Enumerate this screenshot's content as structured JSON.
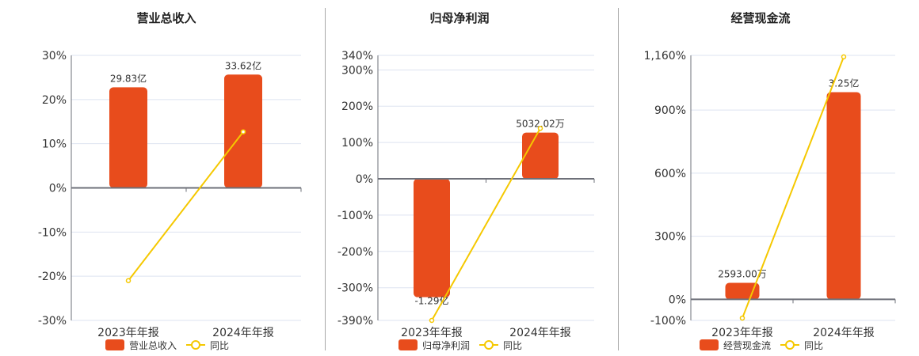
{
  "colors": {
    "bar": "#e84c1c",
    "line": "#f5c800",
    "grid": "#dde3f0",
    "axis": "#6e7079",
    "text": "#333333"
  },
  "chart_data": [
    {
      "type": "bar+line",
      "title": "营业总收入",
      "categories": [
        "2023年年报",
        "2024年年报"
      ],
      "series": [
        {
          "name": "营业总收入",
          "type": "bar",
          "values": [
            29.83,
            33.62
          ],
          "unit": "亿",
          "labels": [
            "29.83亿",
            "33.62亿"
          ]
        },
        {
          "name": "同比",
          "type": "line",
          "values": [
            -21.0,
            12.7
          ],
          "unit": "%"
        }
      ],
      "yticks": [
        "30%",
        "20%",
        "10%",
        "0%",
        "-10%",
        "-20%",
        "-30%"
      ],
      "ytick_values": [
        30,
        20,
        10,
        0,
        -10,
        -20,
        -30
      ],
      "ylim": [
        -30,
        30
      ],
      "grid": true,
      "legend": "bottom"
    },
    {
      "type": "bar+line",
      "title": "归母净利润",
      "categories": [
        "2023年年报",
        "2024年年报"
      ],
      "series": [
        {
          "name": "归母净利润",
          "type": "bar",
          "values": [
            -1.29,
            0.5032
          ],
          "unit": "亿",
          "labels": [
            "-1.29亿",
            "5032.02万"
          ]
        },
        {
          "name": "同比",
          "type": "line",
          "values": [
            -390,
            139
          ],
          "unit": "%"
        }
      ],
      "yticks": [
        "340%",
        "300%",
        "200%",
        "100%",
        "0%",
        "-100%",
        "-200%",
        "-300%",
        "-390%"
      ],
      "ytick_values": [
        340,
        300,
        200,
        100,
        0,
        -100,
        -200,
        -300,
        -390
      ],
      "ylim": [
        -390,
        340
      ],
      "grid": true,
      "legend": "bottom"
    },
    {
      "type": "bar+line",
      "title": "经营现金流",
      "categories": [
        "2023年年报",
        "2024年年报"
      ],
      "series": [
        {
          "name": "经营现金流",
          "type": "bar",
          "values": [
            0.2593,
            3.25
          ],
          "unit": "亿",
          "labels": [
            "2593.00万",
            "3.25亿"
          ]
        },
        {
          "name": "同比",
          "type": "line",
          "values": [
            -89,
            1153
          ],
          "unit": "%"
        }
      ],
      "yticks": [
        "1,160%",
        "900%",
        "600%",
        "300%",
        "0%",
        "-100%"
      ],
      "ytick_values": [
        1160,
        900,
        600,
        300,
        0,
        -100
      ],
      "ylim": [
        -100,
        1160
      ],
      "grid": true,
      "legend": "bottom"
    }
  ]
}
